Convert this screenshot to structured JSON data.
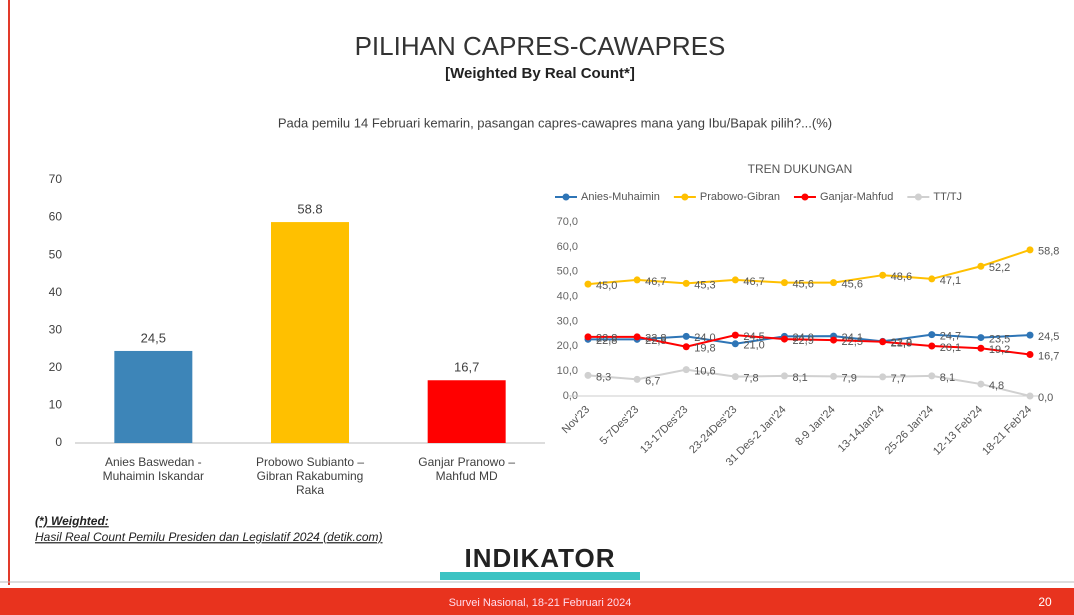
{
  "header": {
    "title": "PILIHAN CAPRES-CAWAPRES",
    "subtitle": "[Weighted By Real Count*]",
    "question": "Pada pemilu 14 Februari kemarin, pasangan capres-cawapres mana yang Ibu/Bapak pilih?...(%)"
  },
  "chart_data": [
    {
      "type": "bar",
      "categories": [
        "Anies Baswedan - Muhaimin Iskandar",
        "Probowo Subianto – Gibran Rakabuming Raka",
        "Ganjar Pranowo – Mahfud MD"
      ],
      "values": [
        24.5,
        58.8,
        16.7
      ],
      "value_labels": [
        "24,5",
        "58.8",
        "16,7"
      ],
      "colors": [
        "#3d85b8",
        "#ffc000",
        "#ff0000"
      ],
      "ylim": [
        0,
        70
      ],
      "yticks": [
        0,
        10,
        20,
        30,
        40,
        50,
        60,
        70
      ],
      "grid": false
    },
    {
      "type": "line",
      "title": "TREN DUKUNGAN",
      "categories": [
        "Nov'23",
        "5-7Des'23",
        "13-17Des'23",
        "23-24Des'23",
        "31 Des-2 Jan'24",
        "8-9 Jan'24",
        "13-14Jan'24",
        "25-26 Jan'24",
        "12-13 Feb'24",
        "18-21 Feb'24"
      ],
      "series": [
        {
          "name": "Anies-Muhaimin",
          "color": "#2e75b6",
          "values": [
            22.8,
            22.8,
            24.0,
            21.0,
            24.0,
            24.1,
            22.0,
            24.7,
            23.5,
            24.5
          ],
          "value_labels": [
            "22,8",
            "22,8",
            "24,0",
            "21,0",
            "24,0",
            "24,1",
            "22,0",
            "24,7",
            "23,5",
            "24,5"
          ]
        },
        {
          "name": "Prabowo-Gibran",
          "color": "#ffc000",
          "values": [
            45.0,
            46.7,
            45.3,
            46.7,
            45.6,
            45.6,
            48.6,
            47.1,
            52.2,
            58.8
          ],
          "value_labels": [
            "45,0",
            "46,7",
            "45,3",
            "46,7",
            "45,6",
            "45,6",
            "48,6",
            "47,1",
            "52,2",
            "58,8"
          ]
        },
        {
          "name": "Ganjar-Mahfud",
          "color": "#ff0000",
          "values": [
            23.8,
            23.8,
            19.8,
            24.5,
            22.9,
            22.5,
            21.8,
            20.1,
            19.2,
            16.7
          ],
          "value_labels": [
            "23,8",
            "23,8",
            "19,8",
            "24,5",
            "22,9",
            "22,5",
            "21,8",
            "20,1",
            "19,2",
            "16,7"
          ]
        },
        {
          "name": "TT/TJ",
          "color": "#d0d0d0",
          "values": [
            8.3,
            6.7,
            10.6,
            7.8,
            8.1,
            7.9,
            7.7,
            8.1,
            4.8,
            0.0
          ],
          "value_labels": [
            "8,3",
            "6,7",
            "10,6",
            "7,8",
            "8,1",
            "7,9",
            "7,7",
            "8,1",
            "4,8",
            "0,0"
          ]
        }
      ],
      "ylim": [
        0,
        70
      ],
      "yticks": [
        {
          "value": 0,
          "label": "0,0"
        },
        {
          "value": 10,
          "label": "10,0"
        },
        {
          "value": 20,
          "label": "20,0"
        },
        {
          "value": 30,
          "label": "30,0"
        },
        {
          "value": 40,
          "label": "40,0"
        },
        {
          "value": 50,
          "label": "50,0"
        },
        {
          "value": 60,
          "label": "60,0"
        },
        {
          "value": 70,
          "label": "70,0"
        }
      ],
      "grid": false,
      "legend": "top"
    }
  ],
  "footnote": {
    "label": "(*) Weighted:",
    "source": "Hasil Real Count Pemilu Presiden dan Legislatif 2024 (detik.com)"
  },
  "logo": "INDIKATOR",
  "footer": {
    "text": "Survei Nasional, 18-21 Februari 2024",
    "page": "20"
  }
}
